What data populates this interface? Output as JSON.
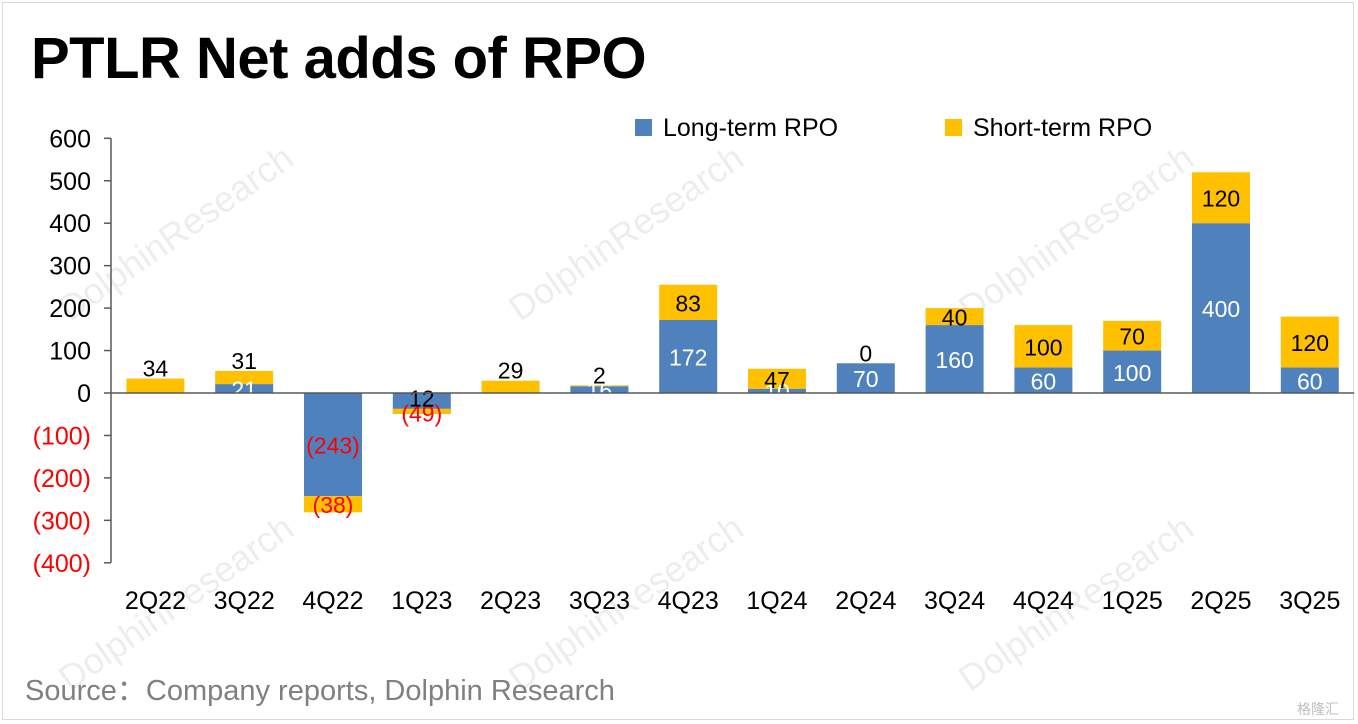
{
  "title": "PTLR Net adds of RPO",
  "source": "Source：Company reports, Dolphin Research",
  "watermark": "DolphinResearch",
  "brand_mark": "格隆汇",
  "chart_data": {
    "type": "bar",
    "stacked": true,
    "categories": [
      "2Q22",
      "3Q22",
      "4Q22",
      "1Q23",
      "2Q23",
      "3Q23",
      "4Q23",
      "1Q24",
      "2Q24",
      "3Q24",
      "4Q24",
      "1Q25",
      "2Q25",
      "3Q25"
    ],
    "series": [
      {
        "name": "Long-term RPO",
        "color": "#4f81bd",
        "values": [
          0,
          21,
          -243,
          -49,
          0,
          16,
          172,
          10,
          70,
          160,
          60,
          100,
          400,
          60
        ],
        "labels": [
          "",
          "21",
          "(243)",
          "(49)",
          "",
          "16",
          "172",
          "10",
          "70",
          "160",
          "60",
          "100",
          "400",
          "60"
        ]
      },
      {
        "name": "Short-term RPO",
        "color": "#ffc000",
        "values": [
          34,
          31,
          -38,
          12,
          29,
          2,
          83,
          47,
          0,
          40,
          100,
          70,
          120,
          120
        ],
        "labels": [
          "34",
          "31",
          "(38)",
          "12",
          "29",
          "2",
          "83",
          "47",
          "0",
          "40",
          "100",
          "70",
          "120",
          "120"
        ]
      }
    ],
    "y_ticks": [
      600,
      500,
      400,
      300,
      200,
      100,
      0,
      -100,
      -200,
      -300,
      -400
    ],
    "y_tick_labels": [
      "600",
      "500",
      "400",
      "300",
      "200",
      "100",
      "0",
      "(100)",
      "(200)",
      "(300)",
      "(400)"
    ],
    "ylim": [
      -400,
      600
    ],
    "negative_label_color": "#ff0000",
    "legend_position": "top-right",
    "grid": false
  }
}
